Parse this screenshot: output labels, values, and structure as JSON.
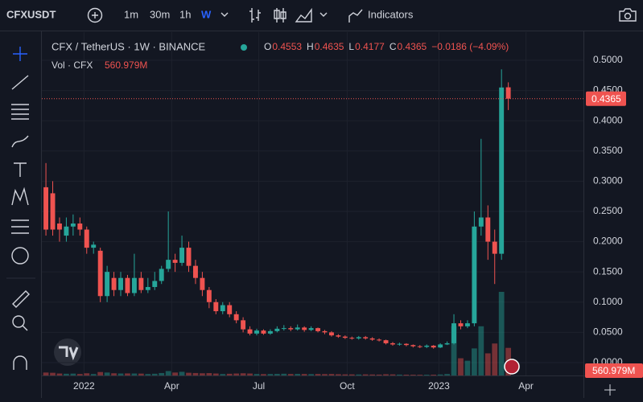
{
  "header": {
    "symbol": "CFXUSDT",
    "intervals": [
      "1m",
      "30m",
      "1h",
      "W"
    ],
    "indicators": "Indicators"
  },
  "chart_data": {
    "type": "candlestick",
    "title": "CFX / TetherUS · 1W · BINANCE",
    "legend_labels": [
      "O",
      "H",
      "L",
      "C"
    ],
    "change": "−0.0186 (−4.09%)",
    "up_color": "#26a69a",
    "down_color": "#ef5350",
    "open": [
      0.29,
      0.28,
      0.23,
      0.21,
      0.225,
      0.23,
      0.22,
      0.19,
      0.185,
      0.11,
      0.14,
      0.12,
      0.14,
      0.115,
      0.14,
      0.12,
      0.125,
      0.135,
      0.155,
      0.17,
      0.165,
      0.19,
      0.16,
      0.14,
      0.12,
      0.1,
      0.085,
      0.095,
      0.08,
      0.07,
      0.055,
      0.048,
      0.053,
      0.048,
      0.052,
      0.056,
      0.057,
      0.055,
      0.058,
      0.054,
      0.057,
      0.052,
      0.05,
      0.045,
      0.043,
      0.041,
      0.04,
      0.042,
      0.04,
      0.038,
      0.037,
      0.032,
      0.03,
      0.031,
      0.029,
      0.027,
      0.026,
      0.028,
      0.025,
      0.03,
      0.032,
      0.065,
      0.06,
      0.065,
      0.225,
      0.24,
      0.2,
      0.18,
      0.4553
    ],
    "high": [
      0.33,
      0.3,
      0.24,
      0.24,
      0.245,
      0.24,
      0.225,
      0.2,
      0.19,
      0.16,
      0.15,
      0.15,
      0.145,
      0.18,
      0.15,
      0.14,
      0.15,
      0.16,
      0.25,
      0.18,
      0.21,
      0.2,
      0.17,
      0.15,
      0.125,
      0.105,
      0.1,
      0.1,
      0.085,
      0.075,
      0.06,
      0.056,
      0.055,
      0.055,
      0.06,
      0.062,
      0.06,
      0.063,
      0.06,
      0.06,
      0.058,
      0.054,
      0.052,
      0.047,
      0.045,
      0.043,
      0.044,
      0.044,
      0.042,
      0.04,
      0.038,
      0.034,
      0.033,
      0.032,
      0.03,
      0.029,
      0.03,
      0.029,
      0.032,
      0.035,
      0.08,
      0.07,
      0.07,
      0.25,
      0.37,
      0.26,
      0.22,
      0.485,
      0.4635
    ],
    "low": [
      0.21,
      0.21,
      0.2,
      0.2,
      0.21,
      0.21,
      0.18,
      0.18,
      0.1,
      0.1,
      0.11,
      0.11,
      0.11,
      0.11,
      0.115,
      0.115,
      0.12,
      0.13,
      0.15,
      0.15,
      0.16,
      0.15,
      0.13,
      0.11,
      0.09,
      0.08,
      0.08,
      0.075,
      0.065,
      0.05,
      0.045,
      0.045,
      0.046,
      0.046,
      0.05,
      0.053,
      0.052,
      0.053,
      0.051,
      0.052,
      0.05,
      0.047,
      0.043,
      0.041,
      0.039,
      0.038,
      0.038,
      0.038,
      0.036,
      0.035,
      0.03,
      0.028,
      0.028,
      0.027,
      0.025,
      0.024,
      0.024,
      0.023,
      0.024,
      0.029,
      0.03,
      0.055,
      0.057,
      0.06,
      0.21,
      0.17,
      0.13,
      0.17,
      0.4177
    ],
    "close": [
      0.22,
      0.22,
      0.22,
      0.225,
      0.23,
      0.22,
      0.19,
      0.195,
      0.11,
      0.15,
      0.12,
      0.14,
      0.115,
      0.14,
      0.12,
      0.125,
      0.135,
      0.155,
      0.17,
      0.165,
      0.19,
      0.16,
      0.14,
      0.12,
      0.1,
      0.085,
      0.095,
      0.08,
      0.07,
      0.055,
      0.048,
      0.053,
      0.048,
      0.052,
      0.056,
      0.057,
      0.055,
      0.058,
      0.054,
      0.057,
      0.052,
      0.05,
      0.045,
      0.043,
      0.041,
      0.04,
      0.042,
      0.04,
      0.038,
      0.037,
      0.032,
      0.03,
      0.031,
      0.029,
      0.027,
      0.026,
      0.028,
      0.025,
      0.03,
      0.032,
      0.065,
      0.06,
      0.065,
      0.225,
      0.24,
      0.2,
      0.18,
      0.455,
      0.4365
    ],
    "volume": {
      "name": "Vol · CFX",
      "last_label": "560.979M",
      "values": [
        60,
        55,
        40,
        35,
        38,
        30,
        45,
        30,
        70,
        60,
        45,
        40,
        42,
        40,
        38,
        30,
        35,
        50,
        90,
        60,
        75,
        55,
        50,
        45,
        48,
        40,
        30,
        35,
        40,
        45,
        40,
        30,
        28,
        30,
        32,
        35,
        30,
        32,
        30,
        28,
        30,
        28,
        30,
        25,
        22,
        22,
        20,
        22,
        20,
        18,
        25,
        22,
        18,
        16,
        15,
        14,
        15,
        16,
        20,
        30,
        1000,
        350,
        300,
        550,
        1000,
        450,
        650,
        1700,
        560.979
      ]
    },
    "ylim": [
      -0.0213,
      0.5465
    ],
    "yticks": [
      {
        "value": 0.5,
        "label": "0.5000"
      },
      {
        "value": 0.45,
        "label": "0.4500"
      },
      {
        "value": 0.4,
        "label": "0.4000"
      },
      {
        "value": 0.35,
        "label": "0.3500"
      },
      {
        "value": 0.3,
        "label": "0.3000"
      },
      {
        "value": 0.25,
        "label": "0.2500"
      },
      {
        "value": 0.2,
        "label": "0.2000"
      },
      {
        "value": 0.15,
        "label": "0.1500"
      },
      {
        "value": 0.1,
        "label": "0.1000"
      },
      {
        "value": 0.05,
        "label": "0.0500"
      },
      {
        "value": 0,
        "label": "0.0000"
      }
    ],
    "xlim": [
      -0.6,
      79.05
    ],
    "xticks": [
      {
        "value": 5.6,
        "label": "2022"
      },
      {
        "value": 18.5,
        "label": "Apr"
      },
      {
        "value": 31.3,
        "label": "Jul"
      },
      {
        "value": 44.3,
        "label": "Oct"
      },
      {
        "value": 57.8,
        "label": "2023"
      },
      {
        "value": 70.6,
        "label": "Apr"
      }
    ],
    "grid": true
  }
}
